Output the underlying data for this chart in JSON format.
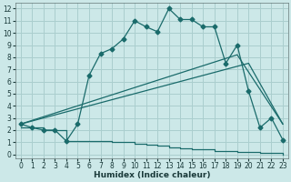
{
  "title": "",
  "xlabel": "Humidex (Indice chaleur)",
  "x_ticks": [
    0,
    1,
    2,
    3,
    4,
    5,
    6,
    7,
    8,
    9,
    10,
    11,
    12,
    13,
    14,
    15,
    16,
    17,
    18,
    19,
    20,
    21,
    22,
    23
  ],
  "xlim": [
    -0.5,
    23.5
  ],
  "ylim": [
    -0.3,
    12.5
  ],
  "y_ticks": [
    0,
    1,
    2,
    3,
    4,
    5,
    6,
    7,
    8,
    9,
    10,
    11,
    12
  ],
  "bg_color": "#cce8e8",
  "grid_color": "#aacece",
  "line_color": "#1a6b6b",
  "series1_x": [
    0,
    1,
    2,
    3,
    4,
    5,
    6,
    7,
    8,
    9,
    10,
    11,
    12,
    13,
    14,
    15,
    16,
    17,
    18,
    19,
    20,
    21,
    22,
    23
  ],
  "series1_y": [
    2.5,
    2.2,
    2.0,
    2.0,
    1.1,
    2.5,
    6.5,
    8.3,
    8.7,
    9.5,
    11.0,
    10.5,
    10.1,
    12.0,
    11.1,
    11.1,
    10.5,
    10.5,
    7.5,
    9.0,
    5.2,
    2.2,
    3.0,
    1.2
  ],
  "series2_x": [
    0,
    19,
    23
  ],
  "series2_y": [
    2.5,
    8.2,
    2.5
  ],
  "series3_x": [
    0,
    20,
    23
  ],
  "series3_y": [
    2.5,
    7.5,
    2.5
  ],
  "series4_x": [
    0,
    2,
    3,
    4,
    5,
    6,
    7,
    8,
    9,
    10,
    11,
    12,
    13,
    14,
    15,
    16,
    17,
    18,
    19,
    20,
    21,
    22,
    23
  ],
  "series4_y": [
    2.2,
    2.0,
    2.0,
    1.1,
    1.1,
    1.1,
    1.1,
    1.0,
    1.0,
    0.9,
    0.8,
    0.7,
    0.6,
    0.5,
    0.4,
    0.4,
    0.3,
    0.3,
    0.2,
    0.2,
    0.1,
    0.1,
    0.0
  ],
  "marker": "D",
  "markersize": 2.5
}
